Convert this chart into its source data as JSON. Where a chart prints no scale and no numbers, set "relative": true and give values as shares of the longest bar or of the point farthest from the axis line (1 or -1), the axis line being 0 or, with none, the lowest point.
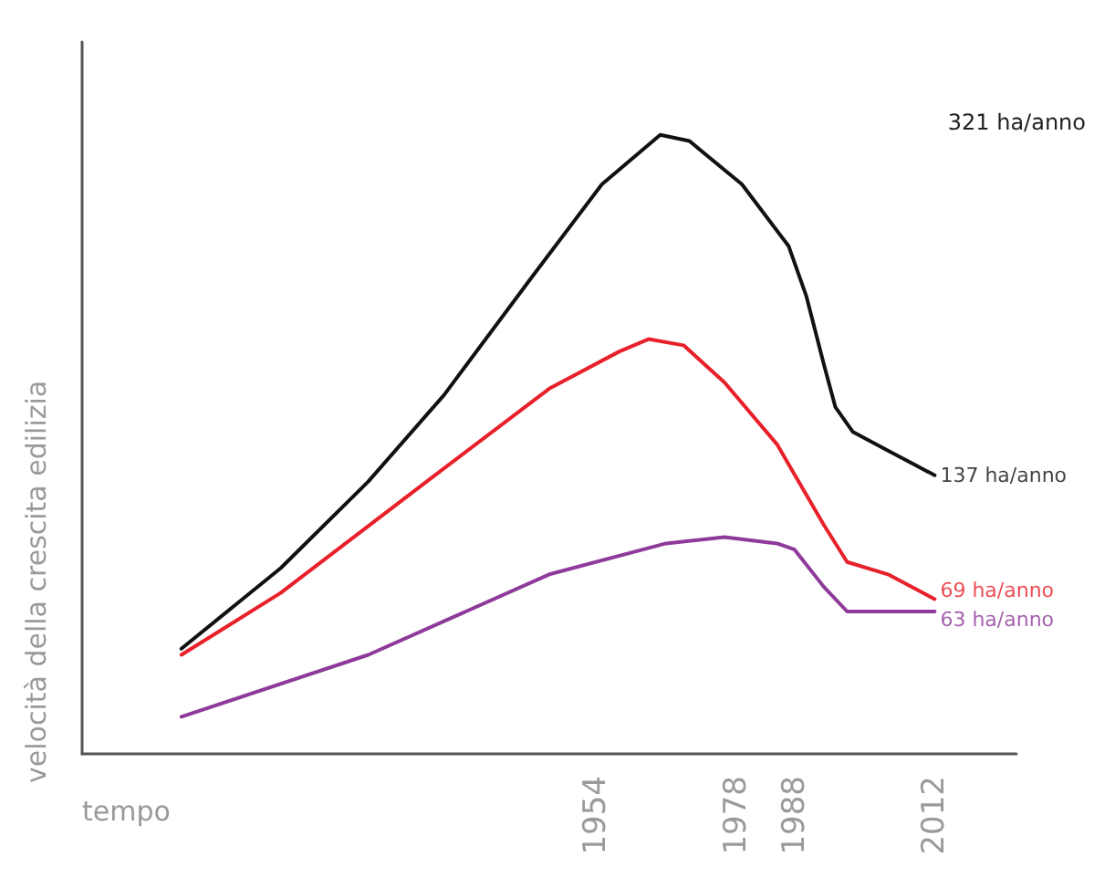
{
  "chart_data": {
    "type": "line",
    "relative": true,
    "xlabel": "tempo",
    "ylabel": "velocità della crescita edilizia",
    "xlim": [
      1866,
      2026
    ],
    "xticks": [
      1954,
      1978,
      1988,
      2012
    ],
    "grid": false,
    "marker": "none",
    "line_style": "solid",
    "series": [
      {
        "color": "#111111",
        "x": [
          1883,
          1900,
          1915,
          1928,
          1943,
          1955,
          1965,
          1970,
          1979,
          1987,
          1990,
          1993,
          1995,
          1998,
          2004,
          2012
        ],
        "values": [
          0.17,
          0.3,
          0.44,
          0.58,
          0.77,
          0.92,
          1,
          0.99,
          0.92,
          0.82,
          0.74,
          0.63,
          0.56,
          0.52,
          0.49,
          0.45
        ]
      },
      {
        "color": "#e8202a",
        "x": [
          1883,
          1900,
          1925,
          1946,
          1958,
          1963,
          1969,
          1976,
          1985,
          1993,
          1997,
          2004,
          2012
        ],
        "values": [
          0.16,
          0.26,
          0.44,
          0.59,
          0.65,
          0.67,
          0.66,
          0.6,
          0.5,
          0.37,
          0.31,
          0.29,
          0.25
        ]
      },
      {
        "color": "#8e3a9a",
        "x": [
          1883,
          1915,
          1946,
          1966,
          1976,
          1985,
          1988,
          1993,
          1997,
          2012
        ],
        "values": [
          0.06,
          0.16,
          0.29,
          0.34,
          0.35,
          0.34,
          0.33,
          0.27,
          0.23,
          0.23
        ]
      }
    ],
    "annotations": [
      "321 ha/anno",
      "137 ha/anno",
      "69 ha/anno",
      "63 ha/anno"
    ]
  }
}
